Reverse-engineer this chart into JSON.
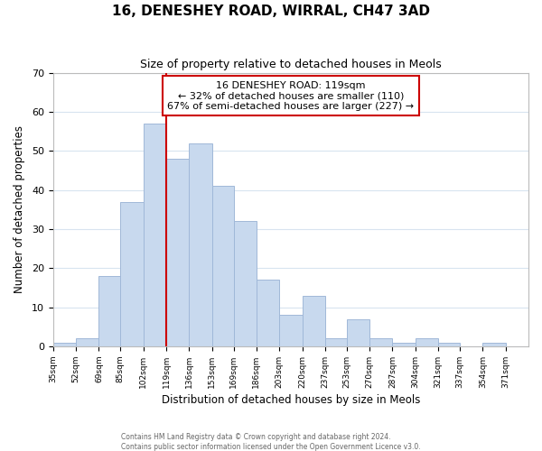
{
  "title": "16, DENESHEY ROAD, WIRRAL, CH47 3AD",
  "subtitle": "Size of property relative to detached houses in Meols",
  "xlabel": "Distribution of detached houses by size in Meols",
  "ylabel": "Number of detached properties",
  "footnote1": "Contains HM Land Registry data © Crown copyright and database right 2024.",
  "footnote2": "Contains public sector information licensed under the Open Government Licence v3.0.",
  "bin_labels": [
    "35sqm",
    "52sqm",
    "69sqm",
    "85sqm",
    "102sqm",
    "119sqm",
    "136sqm",
    "153sqm",
    "169sqm",
    "186sqm",
    "203sqm",
    "220sqm",
    "237sqm",
    "253sqm",
    "270sqm",
    "287sqm",
    "304sqm",
    "321sqm",
    "337sqm",
    "354sqm",
    "371sqm"
  ],
  "bar_values": [
    1,
    2,
    18,
    37,
    57,
    48,
    52,
    41,
    32,
    17,
    8,
    13,
    2,
    7,
    2,
    1,
    2,
    1,
    0,
    1,
    0
  ],
  "bin_edges": [
    35,
    52,
    69,
    85,
    102,
    119,
    136,
    153,
    169,
    186,
    203,
    220,
    237,
    253,
    270,
    287,
    304,
    321,
    337,
    354,
    371,
    388
  ],
  "property_size": 119,
  "property_line_color": "#cc0000",
  "bar_color": "#c8d9ee",
  "bar_edge_color": "#a0b8d8",
  "annotation_line1": "16 DENESHEY ROAD: 119sqm",
  "annotation_line2": "← 32% of detached houses are smaller (110)",
  "annotation_line3": "67% of semi-detached houses are larger (227) →",
  "annotation_box_edge": "#cc0000",
  "ylim": [
    0,
    70
  ],
  "yticks": [
    0,
    10,
    20,
    30,
    40,
    50,
    60,
    70
  ],
  "background_color": "#ffffff",
  "grid_color": "#d8e4f0"
}
